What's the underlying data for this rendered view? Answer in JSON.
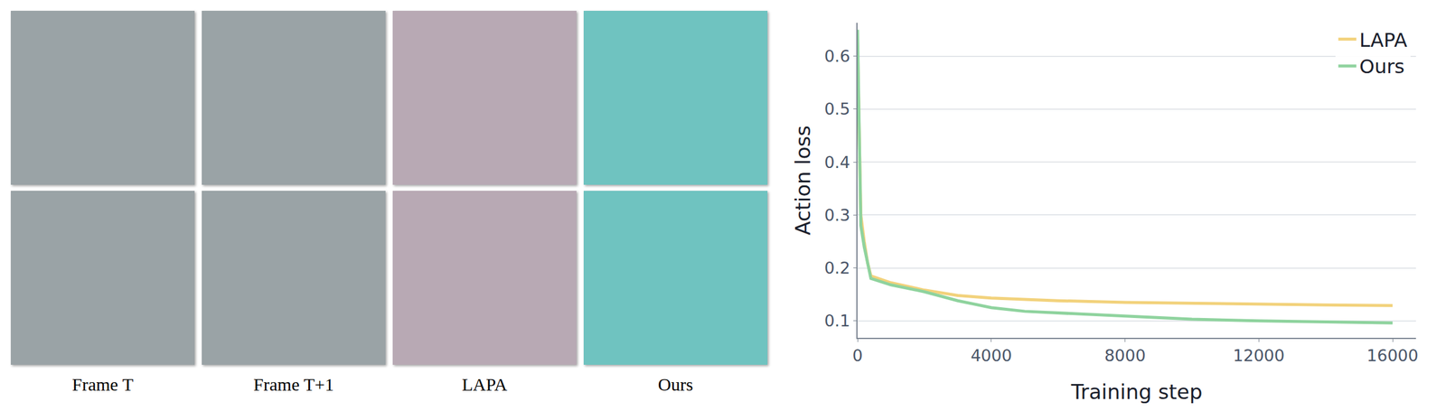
{
  "image_panels": {
    "columns": [
      "Frame T",
      "Frame T+1",
      "LAPA",
      "Ours"
    ],
    "rows": 2
  },
  "chart_data": {
    "type": "line",
    "x_label": "Training step",
    "y_label": "Action loss",
    "x": [
      0,
      100,
      200,
      300,
      400,
      1000,
      2000,
      3000,
      4000,
      5000,
      6000,
      8000,
      10000,
      12000,
      14000,
      16000
    ],
    "series": [
      {
        "name": "LAPA",
        "color": "#f2d27c",
        "values": [
          0.62,
          0.3,
          0.25,
          0.21,
          0.185,
          0.172,
          0.158,
          0.148,
          0.143,
          0.14,
          0.138,
          0.135,
          0.133,
          0.131,
          0.13,
          0.129
        ]
      },
      {
        "name": "Ours",
        "color": "#8fd39e",
        "values": [
          0.65,
          0.28,
          0.24,
          0.21,
          0.18,
          0.168,
          0.155,
          0.138,
          0.125,
          0.118,
          0.115,
          0.108,
          0.103,
          0.1,
          0.098,
          0.096
        ]
      }
    ],
    "xlim": [
      0,
      16700
    ],
    "xticks": [
      0,
      4000,
      8000,
      12000,
      16000
    ],
    "ylim": [
      0.068,
      0.663
    ],
    "yticks": [
      0.1,
      0.2,
      0.3,
      0.4,
      0.5,
      0.6
    ],
    "grid": true,
    "legend": "top-right"
  }
}
